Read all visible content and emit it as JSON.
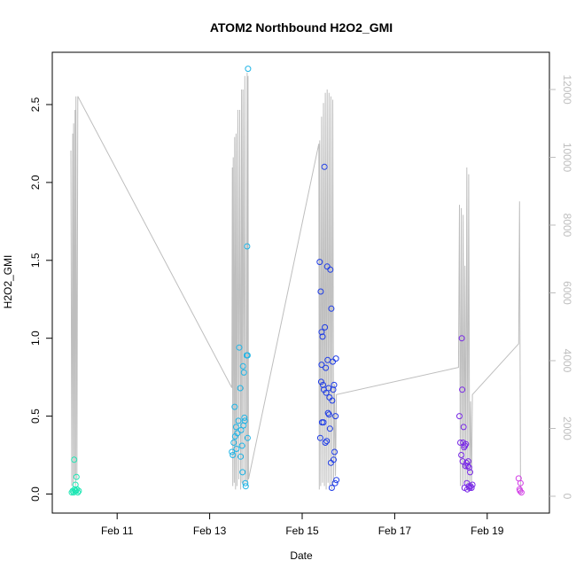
{
  "chart_data": {
    "type": "scatter",
    "title": "ATOM2 Northbound H2O2_GMI",
    "xlabel": "Date",
    "ylabel": "H2O2_GMI",
    "x_unit": "date (2017, fractional day of February)",
    "xlim": [
      10.0,
      20.0
    ],
    "ylim": [
      0.0,
      2.72
    ],
    "x_ticks": [
      11,
      13,
      15,
      17,
      19
    ],
    "x_tick_labels": [
      "Feb 11",
      "Feb 13",
      "Feb 15",
      "Feb 17",
      "Feb 19"
    ],
    "y_ticks": [
      0.0,
      0.5,
      1.0,
      1.5,
      2.0,
      2.5
    ],
    "y_tick_labels": [
      "0.0",
      "0.5",
      "1.0",
      "1.5",
      "2.0",
      "2.5"
    ],
    "y2_ticks": [
      0,
      2000,
      4000,
      6000,
      8000,
      10000,
      12000
    ],
    "y2_tick_labels": [
      "0",
      "2000",
      "4000",
      "6000",
      "8000",
      "10000",
      "12000"
    ],
    "y2lim": [
      0,
      12500
    ],
    "grid": false,
    "legend": "none",
    "colors": {
      "background": "#ffffff",
      "axis": "#000000",
      "secondary_axis": "#bebebe",
      "altitude_line": "#bebebe"
    },
    "points": [
      {
        "x": 10.02,
        "y": 0.01,
        "color": "#1ee6b4"
      },
      {
        "x": 10.04,
        "y": 0.02,
        "color": "#1ee6b4"
      },
      {
        "x": 10.06,
        "y": 0.01,
        "color": "#1ee6b4"
      },
      {
        "x": 10.07,
        "y": 0.22,
        "color": "#1ee6b4"
      },
      {
        "x": 10.08,
        "y": 0.03,
        "color": "#1ee6b4"
      },
      {
        "x": 10.09,
        "y": 0.02,
        "color": "#1ee6b4"
      },
      {
        "x": 10.1,
        "y": 0.06,
        "color": "#1ee6b4"
      },
      {
        "x": 10.11,
        "y": 0.02,
        "color": "#1ee6b4"
      },
      {
        "x": 10.12,
        "y": 0.11,
        "color": "#1ee6b4"
      },
      {
        "x": 10.13,
        "y": 0.03,
        "color": "#1ee6b4"
      },
      {
        "x": 10.15,
        "y": 0.01,
        "color": "#1ee6b4"
      },
      {
        "x": 10.17,
        "y": 0.02,
        "color": "#1ee6b4"
      },
      {
        "x": 13.48,
        "y": 0.27,
        "color": "#1eb4e6"
      },
      {
        "x": 13.5,
        "y": 0.25,
        "color": "#1eb4e6"
      },
      {
        "x": 13.52,
        "y": 0.33,
        "color": "#1eb4e6"
      },
      {
        "x": 13.54,
        "y": 0.56,
        "color": "#1eb4e6"
      },
      {
        "x": 13.55,
        "y": 0.37,
        "color": "#1eb4e6"
      },
      {
        "x": 13.57,
        "y": 0.43,
        "color": "#1eb4e6"
      },
      {
        "x": 13.58,
        "y": 0.29,
        "color": "#1eb4e6"
      },
      {
        "x": 13.6,
        "y": 0.39,
        "color": "#1eb4e6"
      },
      {
        "x": 13.62,
        "y": 0.47,
        "color": "#1eb4e6"
      },
      {
        "x": 13.64,
        "y": 0.94,
        "color": "#1eb4e6"
      },
      {
        "x": 13.66,
        "y": 0.68,
        "color": "#1eb4e6"
      },
      {
        "x": 13.67,
        "y": 0.24,
        "color": "#1eb4e6"
      },
      {
        "x": 13.68,
        "y": 0.41,
        "color": "#1eb4e6"
      },
      {
        "x": 13.7,
        "y": 0.31,
        "color": "#1eb4e6"
      },
      {
        "x": 13.71,
        "y": 0.14,
        "color": "#1eb4e6"
      },
      {
        "x": 13.72,
        "y": 0.82,
        "color": "#1eb4e6"
      },
      {
        "x": 13.73,
        "y": 0.44,
        "color": "#1eb4e6"
      },
      {
        "x": 13.74,
        "y": 0.78,
        "color": "#1eb4e6"
      },
      {
        "x": 13.75,
        "y": 0.49,
        "color": "#1eb4e6"
      },
      {
        "x": 13.76,
        "y": 0.47,
        "color": "#1eb4e6"
      },
      {
        "x": 13.77,
        "y": 0.07,
        "color": "#1eb4e6"
      },
      {
        "x": 13.78,
        "y": 0.05,
        "color": "#1eb4e6"
      },
      {
        "x": 13.8,
        "y": 0.89,
        "color": "#1eb4e6"
      },
      {
        "x": 13.81,
        "y": 1.59,
        "color": "#1eb4e6"
      },
      {
        "x": 13.82,
        "y": 0.89,
        "color": "#1eb4e6"
      },
      {
        "x": 13.82,
        "y": 0.36,
        "color": "#1eb4e6"
      },
      {
        "x": 13.83,
        "y": 2.73,
        "color": "#1eb4e6"
      },
      {
        "x": 15.38,
        "y": 1.49,
        "color": "#1e3ce6"
      },
      {
        "x": 15.39,
        "y": 0.36,
        "color": "#1e3ce6"
      },
      {
        "x": 15.4,
        "y": 1.3,
        "color": "#1e3ce6"
      },
      {
        "x": 15.41,
        "y": 0.72,
        "color": "#1e3ce6"
      },
      {
        "x": 15.42,
        "y": 1.04,
        "color": "#1e3ce6"
      },
      {
        "x": 15.42,
        "y": 0.83,
        "color": "#1e3ce6"
      },
      {
        "x": 15.43,
        "y": 0.46,
        "color": "#1e3ce6"
      },
      {
        "x": 15.44,
        "y": 1.01,
        "color": "#1e3ce6"
      },
      {
        "x": 15.45,
        "y": 0.7,
        "color": "#1e3ce6"
      },
      {
        "x": 15.46,
        "y": 0.46,
        "color": "#1e3ce6"
      },
      {
        "x": 15.47,
        "y": 0.67,
        "color": "#1e3ce6"
      },
      {
        "x": 15.48,
        "y": 2.1,
        "color": "#1e3ce6"
      },
      {
        "x": 15.49,
        "y": 1.07,
        "color": "#1e3ce6"
      },
      {
        "x": 15.5,
        "y": 0.33,
        "color": "#1e3ce6"
      },
      {
        "x": 15.51,
        "y": 0.81,
        "color": "#1e3ce6"
      },
      {
        "x": 15.52,
        "y": 0.65,
        "color": "#1e3ce6"
      },
      {
        "x": 15.53,
        "y": 0.34,
        "color": "#1e3ce6"
      },
      {
        "x": 15.54,
        "y": 1.46,
        "color": "#1e3ce6"
      },
      {
        "x": 15.55,
        "y": 0.86,
        "color": "#1e3ce6"
      },
      {
        "x": 15.56,
        "y": 0.52,
        "color": "#1e3ce6"
      },
      {
        "x": 15.57,
        "y": 0.68,
        "color": "#1e3ce6"
      },
      {
        "x": 15.58,
        "y": 0.51,
        "color": "#1e3ce6"
      },
      {
        "x": 15.59,
        "y": 0.62,
        "color": "#1e3ce6"
      },
      {
        "x": 15.6,
        "y": 0.42,
        "color": "#1e3ce6"
      },
      {
        "x": 15.61,
        "y": 1.44,
        "color": "#1e3ce6"
      },
      {
        "x": 15.62,
        "y": 0.2,
        "color": "#1e3ce6"
      },
      {
        "x": 15.63,
        "y": 1.19,
        "color": "#1e3ce6"
      },
      {
        "x": 15.64,
        "y": 0.04,
        "color": "#1e3ce6"
      },
      {
        "x": 15.65,
        "y": 0.6,
        "color": "#1e3ce6"
      },
      {
        "x": 15.66,
        "y": 0.85,
        "color": "#1e3ce6"
      },
      {
        "x": 15.67,
        "y": 0.67,
        "color": "#1e3ce6"
      },
      {
        "x": 15.68,
        "y": 0.22,
        "color": "#1e3ce6"
      },
      {
        "x": 15.69,
        "y": 0.7,
        "color": "#1e3ce6"
      },
      {
        "x": 15.7,
        "y": 0.27,
        "color": "#1e3ce6"
      },
      {
        "x": 15.71,
        "y": 0.07,
        "color": "#1e3ce6"
      },
      {
        "x": 15.72,
        "y": 0.5,
        "color": "#1e3ce6"
      },
      {
        "x": 15.73,
        "y": 0.87,
        "color": "#1e3ce6"
      },
      {
        "x": 15.74,
        "y": 0.09,
        "color": "#1e3ce6"
      },
      {
        "x": 18.4,
        "y": 0.5,
        "color": "#7828e6"
      },
      {
        "x": 18.42,
        "y": 0.33,
        "color": "#7828e6"
      },
      {
        "x": 18.44,
        "y": 0.25,
        "color": "#7828e6"
      },
      {
        "x": 18.45,
        "y": 1.0,
        "color": "#7828e6"
      },
      {
        "x": 18.46,
        "y": 0.67,
        "color": "#7828e6"
      },
      {
        "x": 18.47,
        "y": 0.21,
        "color": "#7828e6"
      },
      {
        "x": 18.48,
        "y": 0.33,
        "color": "#7828e6"
      },
      {
        "x": 18.49,
        "y": 0.43,
        "color": "#7828e6"
      },
      {
        "x": 18.5,
        "y": 0.3,
        "color": "#7828e6"
      },
      {
        "x": 18.51,
        "y": 0.04,
        "color": "#7828e6"
      },
      {
        "x": 18.52,
        "y": 0.31,
        "color": "#7828e6"
      },
      {
        "x": 18.53,
        "y": 0.18,
        "color": "#7828e6"
      },
      {
        "x": 18.54,
        "y": 0.32,
        "color": "#7828e6"
      },
      {
        "x": 18.55,
        "y": 0.2,
        "color": "#7828e6"
      },
      {
        "x": 18.56,
        "y": 0.07,
        "color": "#7828e6"
      },
      {
        "x": 18.57,
        "y": 0.03,
        "color": "#7828e6"
      },
      {
        "x": 18.58,
        "y": 0.18,
        "color": "#7828e6"
      },
      {
        "x": 18.59,
        "y": 0.21,
        "color": "#7828e6"
      },
      {
        "x": 18.6,
        "y": 0.05,
        "color": "#7828e6"
      },
      {
        "x": 18.61,
        "y": 0.17,
        "color": "#7828e6"
      },
      {
        "x": 18.62,
        "y": 0.04,
        "color": "#7828e6"
      },
      {
        "x": 18.63,
        "y": 0.14,
        "color": "#7828e6"
      },
      {
        "x": 18.64,
        "y": 0.05,
        "color": "#7828e6"
      },
      {
        "x": 18.66,
        "y": 0.04,
        "color": "#7828e6"
      },
      {
        "x": 18.68,
        "y": 0.06,
        "color": "#7828e6"
      },
      {
        "x": 19.68,
        "y": 0.1,
        "color": "#d23ce6"
      },
      {
        "x": 19.7,
        "y": 0.03,
        "color": "#d23ce6"
      },
      {
        "x": 19.71,
        "y": 0.02,
        "color": "#d23ce6"
      },
      {
        "x": 19.72,
        "y": 0.07,
        "color": "#d23ce6"
      },
      {
        "x": 19.74,
        "y": 0.01,
        "color": "#d23ce6"
      }
    ],
    "altitude_series": {
      "axis": "right",
      "x": [
        10.0,
        10.02,
        10.04,
        10.05,
        10.06,
        10.08,
        10.09,
        10.1,
        10.11,
        10.13,
        10.15,
        13.48,
        13.49,
        13.5,
        13.51,
        13.53,
        13.54,
        13.56,
        13.57,
        13.59,
        13.61,
        13.63,
        13.65,
        13.67,
        13.69,
        13.7,
        13.72,
        13.74,
        13.76,
        13.78,
        13.79,
        13.81,
        13.82,
        13.83,
        13.84,
        15.36,
        15.37,
        15.38,
        15.4,
        15.42,
        15.44,
        15.46,
        15.48,
        15.5,
        15.52,
        15.54,
        15.56,
        15.58,
        15.6,
        15.62,
        15.64,
        15.66,
        15.68,
        15.7,
        15.72,
        15.74,
        18.38,
        18.4,
        18.42,
        18.44,
        18.46,
        18.48,
        18.5,
        18.52,
        18.54,
        18.56,
        18.58,
        18.6,
        18.62,
        18.64,
        18.66,
        18.68,
        19.68,
        19.7,
        19.72
      ],
      "y": [
        10200,
        300,
        10700,
        400,
        11000,
        600,
        11400,
        300,
        11800,
        500,
        11800,
        3200,
        9700,
        300,
        10000,
        400,
        10600,
        200,
        10700,
        300,
        11400,
        500,
        11400,
        200,
        12000,
        400,
        12000,
        300,
        12400,
        500,
        400,
        12500,
        300,
        12400,
        500,
        10400,
        200,
        10500,
        300,
        11200,
        400,
        11600,
        300,
        11900,
        200,
        12000,
        400,
        11900,
        300,
        11800,
        200,
        11700,
        400,
        3300,
        600,
        3000,
        3800,
        8600,
        300,
        8500,
        200,
        8300,
        400,
        6800,
        300,
        9700,
        200,
        9500,
        400,
        2800,
        300,
        3000,
        4500,
        8700,
        100
      ]
    }
  }
}
